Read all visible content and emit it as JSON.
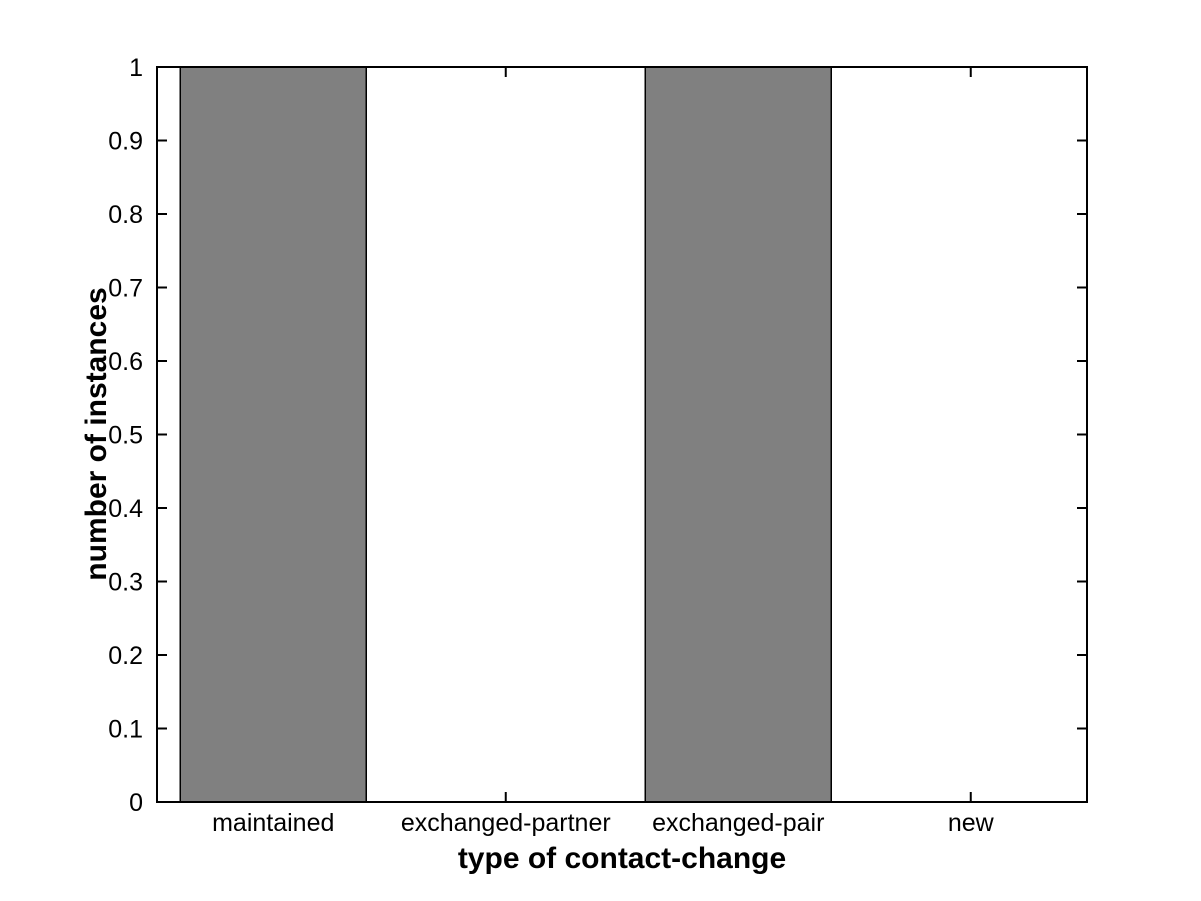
{
  "figure": {
    "background": "#ffffff"
  },
  "chart_data": {
    "type": "bar",
    "categories": [
      "maintained",
      "exchanged-partner",
      "exchanged-pair",
      "new"
    ],
    "values": [
      1,
      0,
      1,
      0
    ],
    "title": "",
    "xlabel": "type of contact-change",
    "ylabel": "number of instances",
    "ylim": [
      0,
      1
    ],
    "yticks": [
      0,
      0.1,
      0.2,
      0.3,
      0.4,
      0.5,
      0.6,
      0.7,
      0.8,
      0.9,
      1
    ],
    "ytick_labels": [
      "0",
      "0.1",
      "0.2",
      "0.3",
      "0.4",
      "0.5",
      "0.6",
      "0.7",
      "0.8",
      "0.9",
      "1"
    ],
    "bar_color": "#808080",
    "bar_edge_color": "#000000",
    "axis_color": "#000000",
    "text_color": "#000000",
    "bar_width_fraction": 0.8,
    "grid": false,
    "legend": false,
    "box": true,
    "tick_direction": "in"
  }
}
